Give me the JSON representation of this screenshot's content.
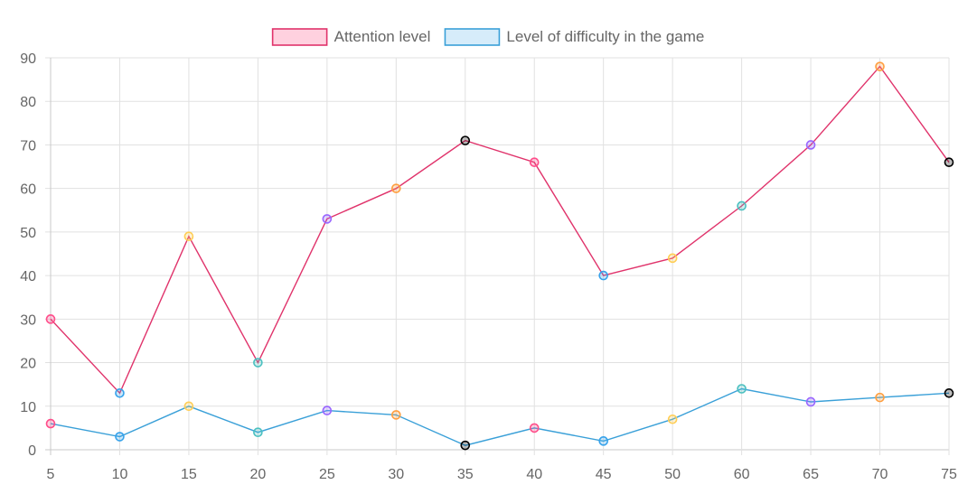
{
  "chart_data": {
    "type": "line",
    "categories": [
      "5",
      "10",
      "15",
      "20",
      "25",
      "30",
      "35",
      "40",
      "45",
      "50",
      "60",
      "65",
      "70",
      "75"
    ],
    "ylim": [
      0,
      90
    ],
    "yticks": [
      0,
      10,
      20,
      30,
      40,
      50,
      60,
      70,
      80,
      90
    ],
    "grid": true,
    "legend_position": "top",
    "point_colors": [
      "#ff4d8a",
      "#36a2eb",
      "#ffce56",
      "#4bc0c0",
      "#9966ff",
      "#ff9f40",
      "#000000"
    ],
    "series": [
      {
        "name": "Attention level",
        "values": [
          30,
          13,
          49,
          20,
          53,
          60,
          71,
          66,
          40,
          44,
          56,
          70,
          88,
          66
        ],
        "line_color": "#e0336b",
        "legend_fill": "#ffd1df",
        "legend_border": "#e0336b"
      },
      {
        "name": "Level of difficulty in the game",
        "values": [
          6,
          3,
          10,
          4,
          9,
          8,
          1,
          5,
          2,
          7,
          14,
          11,
          12,
          13
        ],
        "line_color": "#3aa0d8",
        "legend_fill": "#d6ecfa",
        "legend_border": "#3aa0d8"
      }
    ]
  }
}
